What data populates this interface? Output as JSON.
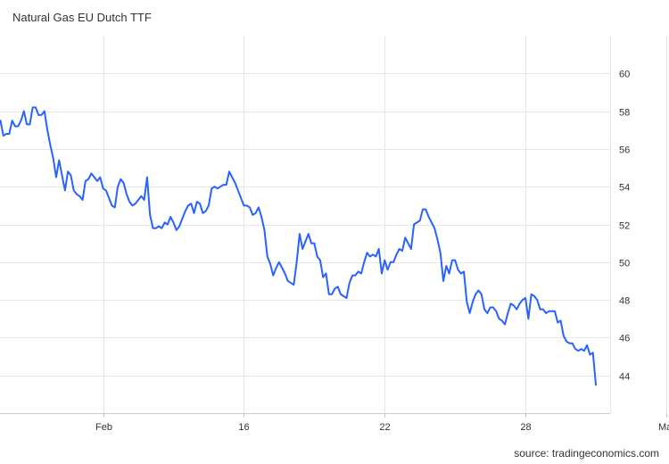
{
  "title": "Natural Gas EU Dutch TTF",
  "source": "source: tradingeconomics.com",
  "colors": {
    "line": "#2962ff",
    "grid": "#e6e6e6",
    "axis": "#cccccc",
    "text": "#333333"
  },
  "chart_data": {
    "type": "line",
    "title": "Natural Gas EU Dutch TTF",
    "xlabel": "",
    "ylabel": "",
    "ylim": [
      42,
      62
    ],
    "yticks": [
      44,
      46,
      48,
      50,
      52,
      54,
      56,
      58,
      60
    ],
    "xticks": [
      {
        "label": "Feb",
        "index": 35
      },
      {
        "label": "16",
        "index": 83
      },
      {
        "label": "22",
        "index": 131
      },
      {
        "label": "28",
        "index": 179
      },
      {
        "label": "Mar",
        "index": 227
      }
    ],
    "grid": true,
    "yaxis_side": "right",
    "series": [
      {
        "values": [
          57.5,
          56.7,
          56.8,
          56.8,
          57.5,
          57.2,
          57.2,
          57.5,
          58.0,
          57.3,
          57.3,
          58.2,
          58.2,
          57.8,
          57.8,
          58.0,
          57.0,
          56.2,
          55.5,
          54.5,
          55.4,
          54.6,
          53.8,
          54.8,
          54.6,
          53.8,
          53.6,
          53.5,
          53.3,
          54.3,
          54.4,
          54.7,
          54.5,
          54.3,
          54.5,
          53.9,
          53.8,
          53.4,
          53.0,
          52.9,
          54.0,
          54.4,
          54.2,
          53.6,
          53.2,
          53.0,
          53.1,
          53.3,
          53.5,
          53.3,
          54.5,
          52.5,
          51.8,
          51.8,
          51.9,
          51.8,
          52.1,
          52.0,
          52.4,
          52.1,
          51.7,
          51.9,
          52.3,
          52.7,
          53.0,
          53.1,
          52.6,
          53.2,
          53.1,
          52.6,
          52.7,
          53.0,
          53.9,
          54.0,
          53.9,
          54.0,
          54.1,
          54.1,
          54.8,
          54.5,
          54.2,
          53.8,
          53.4,
          53.0,
          53.0,
          52.9,
          52.5,
          52.6,
          52.9,
          52.4,
          51.7,
          50.3,
          49.9,
          49.3,
          49.7,
          50.0,
          49.7,
          49.4,
          49.0,
          48.9,
          48.8,
          50.0,
          51.5,
          50.7,
          51.1,
          51.5,
          51.0,
          51.0,
          50.3,
          50.1,
          49.2,
          49.4,
          48.3,
          48.3,
          48.6,
          48.7,
          48.3,
          48.2,
          48.1,
          48.9,
          49.3,
          49.3,
          49.5,
          49.4,
          50.0,
          50.5,
          50.3,
          50.4,
          50.3,
          50.7,
          49.4,
          50.1,
          49.6,
          50.0,
          50.0,
          50.4,
          50.7,
          50.6,
          51.3,
          51.0,
          50.7,
          52.0,
          52.1,
          52.2,
          52.8,
          52.8,
          52.4,
          52.1,
          51.8,
          51.2,
          50.5,
          49.0,
          49.8,
          49.4,
          50.1,
          50.1,
          49.6,
          49.4,
          49.5,
          47.9,
          47.3,
          47.9,
          48.3,
          48.5,
          48.3,
          47.5,
          47.3,
          47.6,
          47.6,
          47.4,
          47.0,
          46.9,
          46.7,
          47.3,
          47.8,
          47.7,
          47.5,
          47.8,
          48.0,
          48.1,
          47.0,
          48.3,
          48.2,
          48.0,
          47.5,
          47.5,
          47.3,
          47.4,
          47.4,
          47.4,
          46.8,
          46.9,
          46.1,
          45.8,
          45.7,
          45.7,
          45.4,
          45.3,
          45.4,
          45.3,
          45.6,
          45.1,
          45.2,
          43.5
        ]
      }
    ]
  }
}
